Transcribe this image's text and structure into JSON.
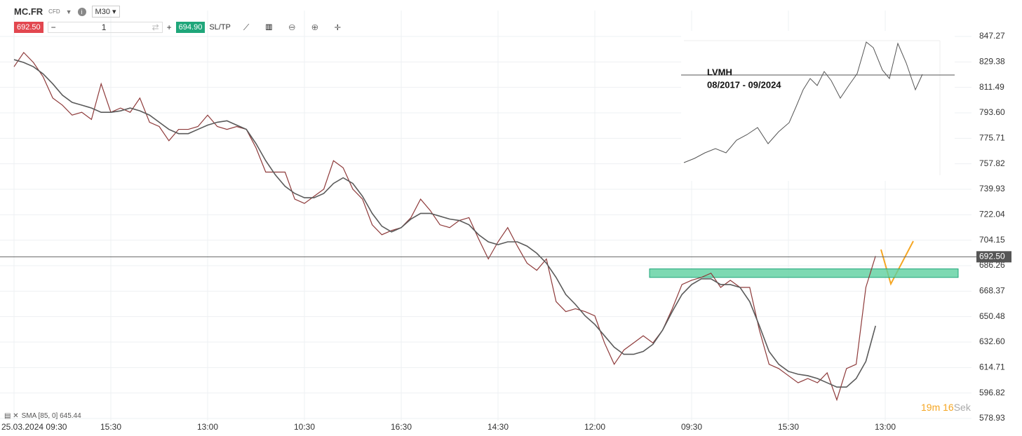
{
  "toolbar": {
    "symbol": "MC.FR",
    "kind": "CFD",
    "timeframe": "M30",
    "sell": "692.50",
    "quantity": "1",
    "buy": "694.90",
    "sltp": "SL/TP"
  },
  "inset": {
    "title": "LVMH",
    "period": "08/2017 - 09/2024"
  },
  "timer": {
    "minutes": "19m",
    "seconds": "16",
    "unit": "Sek"
  },
  "indicator": "SMA [85, 0] 645.44",
  "chart_data": {
    "type": "line",
    "categories": [
      "25.03.2024 09:30",
      null,
      null,
      null,
      null,
      null,
      null,
      null,
      null,
      null,
      "15:30",
      null,
      null,
      null,
      null,
      null,
      null,
      null,
      null,
      null,
      "13:00",
      null,
      null,
      null,
      null,
      null,
      null,
      null,
      null,
      null,
      "10:30",
      null,
      null,
      null,
      null,
      null,
      null,
      null,
      null,
      null,
      "16:30",
      null,
      null,
      null,
      null,
      null,
      null,
      null,
      null,
      null,
      "14:30",
      null,
      null,
      null,
      null,
      null,
      null,
      null,
      null,
      null,
      "12:00",
      null,
      null,
      null,
      null,
      null,
      null,
      null,
      null,
      null,
      "09:30",
      null,
      null,
      null,
      null,
      null,
      null,
      null,
      null,
      null,
      "15:30",
      null,
      null,
      null,
      null,
      null,
      null,
      null,
      null,
      null,
      "13:00"
    ],
    "series": [
      {
        "name": "MC.FR",
        "color": "#8e3a3a",
        "values": [
          826,
          836,
          829,
          819,
          804,
          799,
          792,
          794,
          789,
          814,
          794,
          797,
          794,
          804,
          787,
          784,
          774,
          782,
          782,
          784,
          792,
          784,
          782,
          784,
          782,
          769,
          752,
          752,
          752,
          733,
          730,
          735,
          740,
          760,
          755,
          740,
          733,
          715,
          708,
          711,
          713,
          720,
          733,
          725,
          715,
          713,
          718,
          720,
          705,
          691,
          703,
          713,
          700,
          688,
          683,
          691,
          661,
          654,
          656,
          654,
          651,
          632,
          617,
          627,
          632,
          637,
          632,
          641,
          656,
          673,
          676,
          678,
          681,
          671,
          676,
          671,
          671,
          641,
          617,
          614,
          609,
          604,
          607,
          604,
          611,
          592,
          614,
          617,
          671,
          693,
          null
        ]
      },
      {
        "name": "SMA",
        "color": "#5a5a5a",
        "values": [
          831,
          829,
          826,
          821,
          814,
          806,
          801,
          799,
          797,
          794,
          794,
          795,
          797,
          795,
          792,
          787,
          782,
          779,
          779,
          782,
          785,
          787,
          788,
          785,
          782,
          772,
          760,
          750,
          742,
          737,
          734,
          734,
          737,
          744,
          748,
          744,
          735,
          723,
          714,
          710,
          713,
          719,
          723,
          723,
          721,
          719,
          718,
          715,
          708,
          703,
          701,
          703,
          703,
          700,
          695,
          688,
          678,
          666,
          659,
          651,
          645,
          637,
          629,
          624,
          624,
          626,
          631,
          641,
          654,
          666,
          673,
          677,
          677,
          673,
          673,
          671,
          661,
          644,
          626,
          617,
          612,
          610,
          609,
          607,
          604,
          601,
          601,
          607,
          619,
          644,
          null
        ]
      }
    ],
    "ylim": [
      577.45,
      865.49
    ],
    "yticks": [
      847.27,
      829.38,
      811.49,
      {
        "value": 793.6,
        "label": "793.60"
      },
      775.71,
      757.82,
      739.93,
      722.04,
      704.15,
      686.26,
      668.37,
      650.48,
      {
        "value": 632.6,
        "label": "632.60"
      },
      614.71,
      596.82,
      578.93
    ],
    "last_price": {
      "value": 692.5,
      "label": "692.50"
    },
    "zone": [
      678,
      684
    ],
    "zone_color": "#5ccf9f",
    "grid": true
  }
}
